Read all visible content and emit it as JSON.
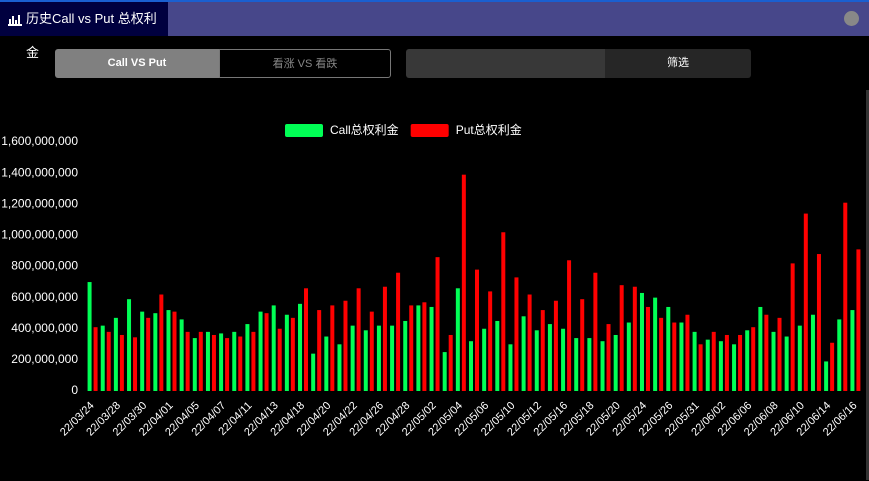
{
  "header": {
    "title": "历史Call vs Put 总权利金"
  },
  "controls": {
    "tabs": [
      "Call VS Put",
      "看涨 VS 看跌"
    ],
    "filter": "筛选"
  },
  "chart_data": {
    "type": "bar",
    "legend": "top",
    "categories": [
      "22/03/24",
      null,
      "22/03/28",
      null,
      "22/03/30",
      null,
      "22/04/01",
      null,
      "22/04/05",
      null,
      "22/04/07",
      null,
      "22/04/11",
      null,
      "22/04/13",
      null,
      "22/04/18",
      null,
      "22/04/20",
      null,
      "22/04/22",
      null,
      "22/04/26",
      null,
      "22/04/28",
      null,
      "22/05/02",
      null,
      "22/05/04",
      null,
      "22/05/06",
      null,
      "22/05/10",
      null,
      "22/05/12",
      null,
      "22/05/16",
      null,
      "22/05/18",
      null,
      "22/05/20",
      null,
      "22/05/24",
      null,
      "22/05/26",
      null,
      "22/05/31",
      null,
      "22/06/02",
      null,
      "22/06/06",
      null,
      "22/06/08",
      null,
      "22/06/10",
      null,
      "22/06/14",
      null,
      "22/06/16"
    ],
    "series": [
      {
        "name": "Call总权利金",
        "color": "#00ff55",
        "values": [
          700000000,
          420000000,
          470000000,
          590000000,
          510000000,
          500000000,
          520000000,
          460000000,
          340000000,
          380000000,
          370000000,
          380000000,
          430000000,
          510000000,
          550000000,
          490000000,
          560000000,
          240000000,
          350000000,
          300000000,
          420000000,
          390000000,
          420000000,
          420000000,
          450000000,
          550000000,
          540000000,
          250000000,
          660000000,
          320000000,
          400000000,
          450000000,
          300000000,
          480000000,
          390000000,
          430000000,
          400000000,
          340000000,
          340000000,
          320000000,
          360000000,
          440000000,
          630000000,
          600000000,
          540000000,
          440000000,
          380000000,
          330000000,
          320000000,
          300000000,
          390000000,
          540000000,
          380000000,
          350000000,
          420000000,
          490000000,
          190000000,
          460000000,
          520000000
        ]
      },
      {
        "name": "Put总权利金",
        "color": "#ff0000",
        "values": [
          410000000,
          380000000,
          360000000,
          345000000,
          470000000,
          620000000,
          510000000,
          380000000,
          380000000,
          360000000,
          340000000,
          350000000,
          380000000,
          500000000,
          400000000,
          470000000,
          660000000,
          520000000,
          550000000,
          580000000,
          660000000,
          510000000,
          670000000,
          760000000,
          550000000,
          570000000,
          860000000,
          360000000,
          1390000000,
          780000000,
          640000000,
          1020000000,
          730000000,
          620000000,
          520000000,
          580000000,
          840000000,
          590000000,
          760000000,
          430000000,
          680000000,
          670000000,
          540000000,
          470000000,
          440000000,
          490000000,
          300000000,
          380000000,
          360000000,
          360000000,
          410000000,
          490000000,
          470000000,
          820000000,
          1140000000,
          880000000,
          310000000,
          1210000000,
          910000000
        ]
      }
    ],
    "ylim": [
      0,
      1600000000
    ],
    "yticks": [
      0,
      {
        "value": 200000000,
        "label": "200,000,000"
      },
      {
        "value": 400000000,
        "label": "400,000,000"
      },
      {
        "value": 600000000,
        "label": "600,000,000"
      },
      {
        "value": 800000000,
        "label": "800,000,000"
      },
      {
        "value": 1000000000,
        "label": "1,000,000,000"
      },
      {
        "value": 1200000000,
        "label": "1,200,000,000"
      },
      {
        "value": 1400000000,
        "label": "1,400,000,000"
      },
      {
        "value": 1600000000,
        "label": "1,600,000,000"
      }
    ]
  }
}
